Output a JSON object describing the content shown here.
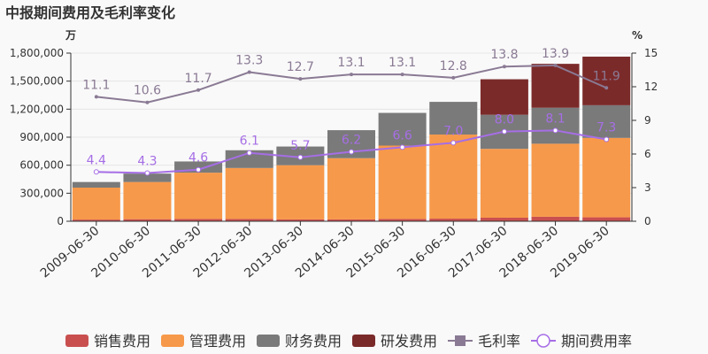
{
  "chart_data": {
    "type": "bar",
    "stacked": true,
    "title": "中报期间费用及毛利率变化",
    "left_unit": "万",
    "right_unit": "%",
    "categories": [
      "2009-06-30",
      "2010-06-30",
      "2011-06-30",
      "2012-06-30",
      "2013-06-30",
      "2014-06-30",
      "2015-06-30",
      "2016-06-30",
      "2017-06-30",
      "2018-06-30",
      "2019-06-30"
    ],
    "y_left": {
      "min": 0,
      "max": 1800000,
      "ticks": [
        0,
        300000,
        600000,
        900000,
        1200000,
        1500000,
        1800000
      ],
      "tick_labels": [
        "0",
        "300,000",
        "600,000",
        "900,000",
        "1,200,000",
        "1,500,000",
        "1,800,000"
      ]
    },
    "y_right": {
      "min": 0,
      "max": 15,
      "ticks": [
        0,
        3,
        6,
        9,
        12,
        15
      ],
      "tick_labels": [
        "0",
        "3",
        "6",
        "9",
        "12",
        "15"
      ]
    },
    "bar_series": [
      {
        "name": "销售费用",
        "color": "#c94f4f",
        "values": [
          18000,
          22000,
          25000,
          25000,
          20000,
          20000,
          25000,
          28000,
          38000,
          48000,
          42000
        ]
      },
      {
        "name": "管理费用",
        "color": "#f7994a",
        "values": [
          342000,
          398000,
          495000,
          545000,
          580000,
          655000,
          785000,
          900000,
          737000,
          782000,
          850000
        ]
      },
      {
        "name": "财务费用",
        "color": "#7a7a7a",
        "values": [
          60000,
          90000,
          120000,
          190000,
          200000,
          300000,
          350000,
          350000,
          365000,
          385000,
          350000
        ]
      },
      {
        "name": "研发费用",
        "color": "#7b2a2a",
        "values": [
          0,
          0,
          0,
          0,
          0,
          0,
          0,
          0,
          380000,
          470000,
          520000
        ]
      }
    ],
    "line_series": [
      {
        "name": "毛利率",
        "color": "#8a7a94",
        "values": [
          11.1,
          10.6,
          11.7,
          13.3,
          12.7,
          13.1,
          13.1,
          12.8,
          13.8,
          13.9,
          11.9
        ],
        "labels": [
          "11.1",
          "10.6",
          "11.7",
          "13.3",
          "12.7",
          "13.1",
          "13.1",
          "12.8",
          "13.8",
          "13.9",
          "11.9"
        ]
      },
      {
        "name": "期间费用率",
        "color": "#a66ee6",
        "values": [
          4.4,
          4.3,
          4.6,
          6.1,
          5.7,
          6.2,
          6.6,
          7.0,
          8.0,
          8.1,
          7.3
        ],
        "labels": [
          "4.4",
          "4.3",
          "4.6",
          "6.1",
          "5.7",
          "6.2",
          "6.6",
          "7.0",
          "8.0",
          "8.1",
          "7.3"
        ]
      }
    ],
    "legend": {
      "position": "bottom"
    }
  }
}
